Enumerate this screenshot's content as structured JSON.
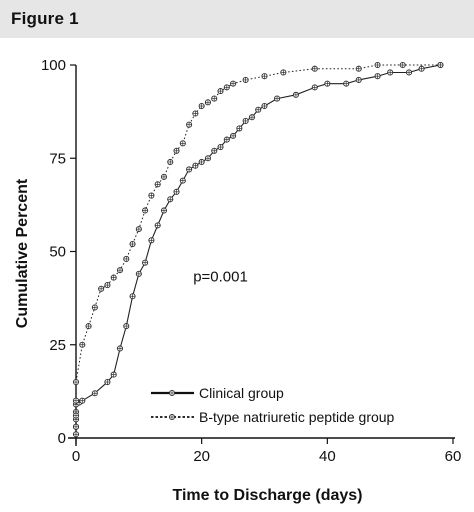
{
  "figure_label": "Figure 1",
  "chart_data": {
    "type": "line",
    "xlabel": "Time to Discharge (days)",
    "ylabel": "Cumulative Percent",
    "xlim": [
      0,
      60
    ],
    "ylim": [
      0,
      100
    ],
    "x_ticks": [
      0,
      20,
      40,
      60
    ],
    "y_ticks": [
      0,
      25,
      50,
      75,
      100
    ],
    "grid": false,
    "legend_position": "bottom-left",
    "annotation": "p=0.001",
    "series": [
      {
        "name": "Clinical group",
        "line_style": "solid",
        "marker": "circle-plus",
        "points": [
          [
            0,
            1
          ],
          [
            0,
            3
          ],
          [
            0,
            5
          ],
          [
            0,
            7
          ],
          [
            0,
            9
          ],
          [
            0.5,
            9.5
          ],
          [
            1,
            10
          ],
          [
            3,
            12
          ],
          [
            5,
            15
          ],
          [
            6,
            17
          ],
          [
            7,
            24
          ],
          [
            8,
            30
          ],
          [
            9,
            38
          ],
          [
            10,
            44
          ],
          [
            11,
            47
          ],
          [
            12,
            53
          ],
          [
            13,
            57
          ],
          [
            14,
            61
          ],
          [
            15,
            64
          ],
          [
            16,
            66
          ],
          [
            17,
            69
          ],
          [
            18,
            72
          ],
          [
            19,
            73
          ],
          [
            20,
            74
          ],
          [
            21,
            75
          ],
          [
            22,
            77
          ],
          [
            23,
            78
          ],
          [
            24,
            80
          ],
          [
            25,
            81
          ],
          [
            26,
            83
          ],
          [
            27,
            85
          ],
          [
            28,
            86
          ],
          [
            29,
            88
          ],
          [
            30,
            89
          ],
          [
            32,
            91
          ],
          [
            35,
            92
          ],
          [
            38,
            94
          ],
          [
            40,
            95
          ],
          [
            43,
            95
          ],
          [
            45,
            96
          ],
          [
            48,
            97
          ],
          [
            50,
            98
          ],
          [
            53,
            98
          ],
          [
            55,
            99
          ],
          [
            58,
            100
          ]
        ]
      },
      {
        "name": "B-type natriuretic peptide group",
        "line_style": "dotted",
        "marker": "circle-plus",
        "points": [
          [
            0,
            3
          ],
          [
            0,
            6
          ],
          [
            0,
            10
          ],
          [
            0,
            15
          ],
          [
            1,
            25
          ],
          [
            2,
            30
          ],
          [
            3,
            35
          ],
          [
            4,
            40
          ],
          [
            5,
            41
          ],
          [
            6,
            43
          ],
          [
            7,
            45
          ],
          [
            8,
            48
          ],
          [
            9,
            52
          ],
          [
            10,
            56
          ],
          [
            11,
            61
          ],
          [
            12,
            65
          ],
          [
            13,
            68
          ],
          [
            14,
            70
          ],
          [
            15,
            74
          ],
          [
            16,
            77
          ],
          [
            17,
            79
          ],
          [
            18,
            84
          ],
          [
            19,
            87
          ],
          [
            20,
            89
          ],
          [
            21,
            90
          ],
          [
            22,
            91
          ],
          [
            23,
            93
          ],
          [
            24,
            94
          ],
          [
            25,
            95
          ],
          [
            27,
            96
          ],
          [
            30,
            97
          ],
          [
            33,
            98
          ],
          [
            38,
            99
          ],
          [
            45,
            99
          ],
          [
            48,
            100
          ],
          [
            52,
            100
          ],
          [
            58,
            100
          ]
        ]
      }
    ]
  }
}
